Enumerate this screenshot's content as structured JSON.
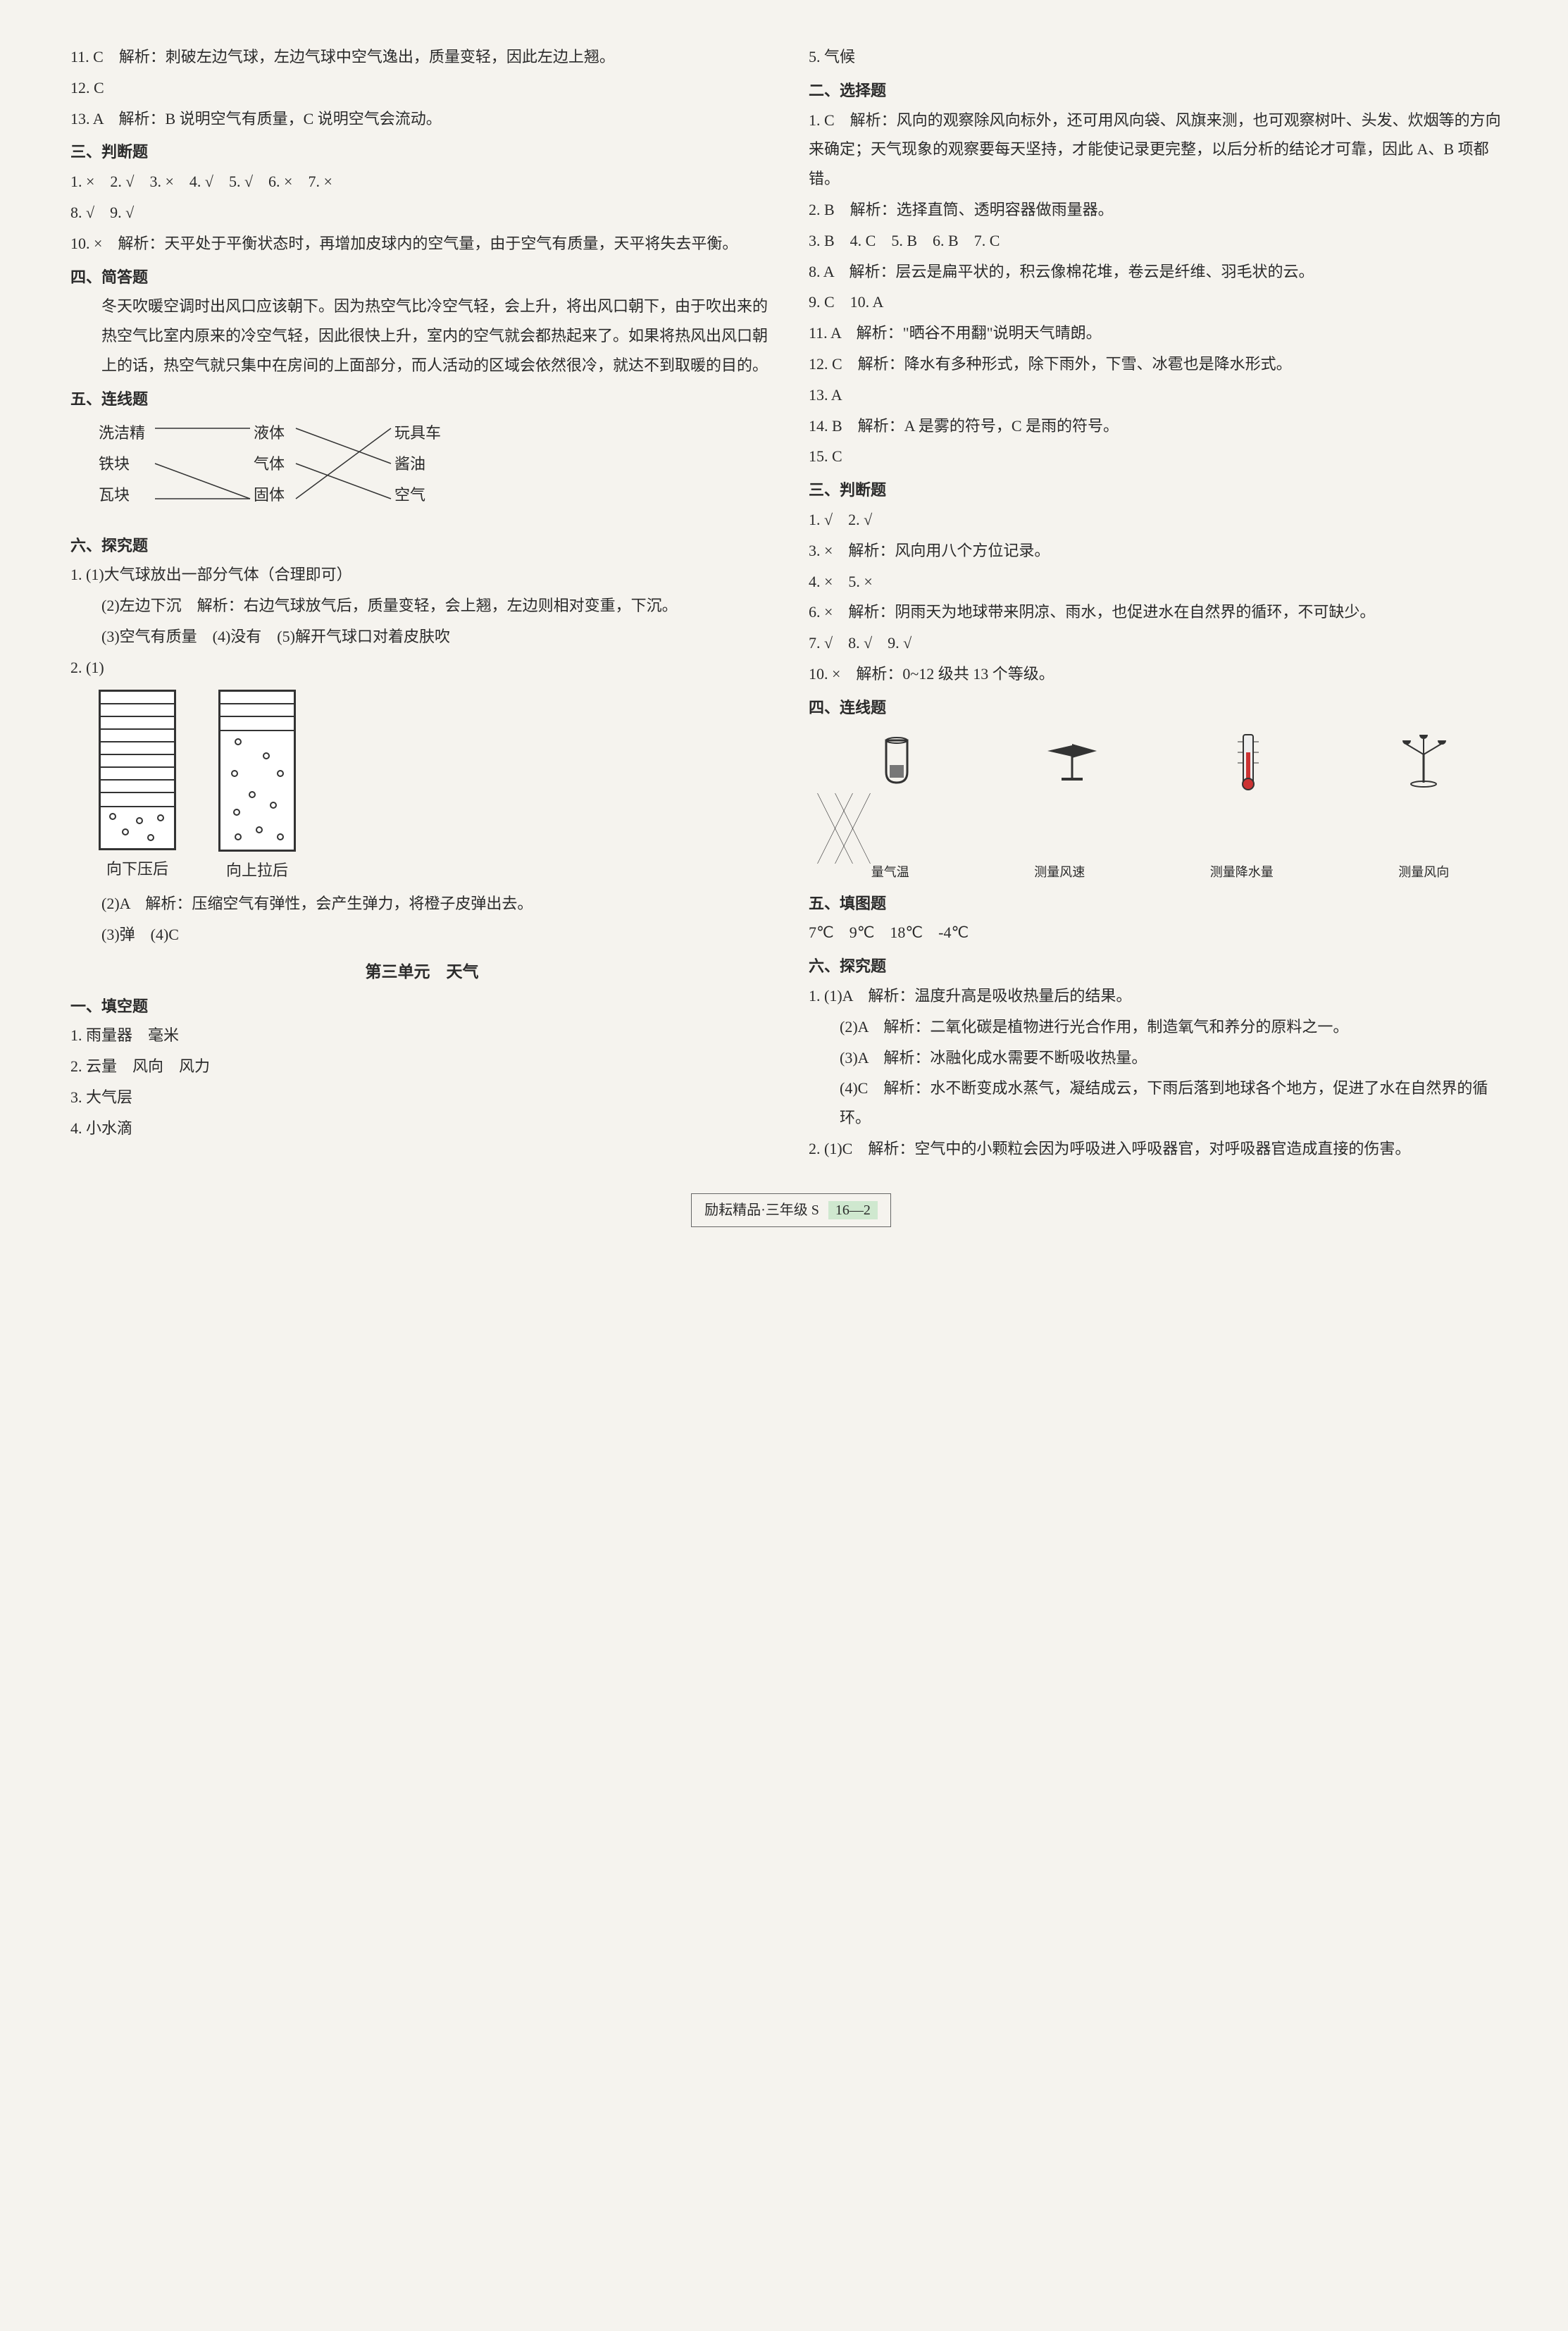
{
  "left": {
    "q11": "11. C　解析：刺破左边气球，左边气球中空气逸出，质量变轻，因此左边上翘。",
    "q12": "12. C",
    "q13": "13. A　解析：B 说明空气有质量，C 说明空气会流动。",
    "sec3_title": "三、判断题",
    "s3_l1": "1. ×　2. √　3. ×　4. √　5. √　6. ×　7. ×",
    "s3_l2": "8. √　9. √",
    "s3_l3": "10. ×　解析：天平处于平衡状态时，再增加皮球内的空气量，由于空气有质量，天平将失去平衡。",
    "sec4_title": "四、简答题",
    "s4_p": "冬天吹暖空调时出风口应该朝下。因为热空气比冷空气轻，会上升，将出风口朝下，由于吹出来的热空气比室内原来的冷空气轻，因此很快上升，室内的空气就会都热起来了。如果将热风出风口朝上的话，热空气就只集中在房间的上面部分，而人活动的区域会依然很冷，就达不到取暖的目的。",
    "sec5_title": "五、连线题",
    "match": {
      "left": [
        "洗洁精",
        "铁块",
        "瓦块"
      ],
      "mid": [
        "液体",
        "气体",
        "固体"
      ],
      "right": [
        "玩具车",
        "酱油",
        "空气"
      ],
      "lines_lm": [
        [
          0,
          0
        ],
        [
          1,
          2
        ],
        [
          2,
          2
        ]
      ],
      "lines_mr": [
        [
          0,
          1
        ],
        [
          1,
          2
        ],
        [
          2,
          0
        ]
      ]
    },
    "sec6_title": "六、探究题",
    "s6_1_1": "1. (1)大气球放出一部分气体（合理即可）",
    "s6_1_2": "(2)左边下沉　解析：右边气球放气后，质量变轻，会上翘，左边则相对变重，下沉。",
    "s6_1_3": "(3)空气有质量　(4)没有　(5)解开气球口对着皮肤吹",
    "s6_2_head": "2. (1)",
    "exp_labels": [
      "向下压后",
      "向上拉后"
    ],
    "s6_2_2": "(2)A　解析：压缩空气有弹性，会产生弹力，将橙子皮弹出去。",
    "s6_2_3": "(3)弹　(4)C",
    "unit3_title": "第三单元　天气",
    "u1_title": "一、填空题",
    "u1_1": "1. 雨量器　毫米",
    "u1_2": "2. 云量　风向　风力",
    "u1_3": "3. 大气层",
    "u1_4": "4. 小水滴"
  },
  "right": {
    "u1_5": "5. 气候",
    "u2_title": "二、选择题",
    "u2_1": "1. C　解析：风向的观察除风向标外，还可用风向袋、风旗来测，也可观察树叶、头发、炊烟等的方向来确定；天气现象的观察要每天坚持，才能使记录更完整，以后分析的结论才可靠，因此 A、B 项都错。",
    "u2_2": "2. B　解析：选择直筒、透明容器做雨量器。",
    "u2_3": "3. B　4. C　5. B　6. B　7. C",
    "u2_8": "8. A　解析：层云是扁平状的，积云像棉花堆，卷云是纤维、羽毛状的云。",
    "u2_9": "9. C　10. A",
    "u2_11": "11. A　解析：\"晒谷不用翻\"说明天气晴朗。",
    "u2_12": "12. C　解析：降水有多种形式，除下雨外，下雪、冰雹也是降水形式。",
    "u2_13": "13. A",
    "u2_14": "14. B　解析：A 是雾的符号，C 是雨的符号。",
    "u2_15": "15. C",
    "u3_title": "三、判断题",
    "u3_1": "1. √　2. √",
    "u3_3": "3. ×　解析：风向用八个方位记录。",
    "u3_4": "4. ×　5. ×",
    "u3_6": "6. ×　解析：阴雨天为地球带来阴凉、雨水，也促进水在自然界的循环，不可缺少。",
    "u3_7": "7. √　8. √　9. √",
    "u3_10": "10. ×　解析：0~12 级共 13 个等级。",
    "u4_title": "四、连线题",
    "weather": {
      "icons": [
        "rain-gauge",
        "wind-vane",
        "thermometer",
        "anemometer"
      ],
      "labels": [
        "量气温",
        "测量风速",
        "测量降水量",
        "测量风向"
      ],
      "lines": [
        [
          0,
          2
        ],
        [
          1,
          3
        ],
        [
          2,
          0
        ],
        [
          3,
          1
        ]
      ]
    },
    "u5_title": "五、填图题",
    "u5_vals": "7℃　9℃　18℃　-4℃",
    "u6_title": "六、探究题",
    "u6_1_1": "1. (1)A　解析：温度升高是吸收热量后的结果。",
    "u6_1_2": "(2)A　解析：二氧化碳是植物进行光合作用，制造氧气和养分的原料之一。",
    "u6_1_3": "(3)A　解析：冰融化成水需要不断吸收热量。",
    "u6_1_4": "(4)C　解析：水不断变成水蒸气，凝结成云，下雨后落到地球各个地方，促进了水在自然界的循环。",
    "u6_2": "2. (1)C　解析：空气中的小颗粒会因为呼吸进入呼吸器官，对呼吸器官造成直接的伤害。"
  },
  "footer": {
    "text": "励耘精品·三年级 S",
    "page": "16—2"
  },
  "colors": {
    "bg": "#f5f3ee",
    "text": "#2a2a2a",
    "line": "#333333",
    "footer_badge": "#cfe8cf"
  }
}
